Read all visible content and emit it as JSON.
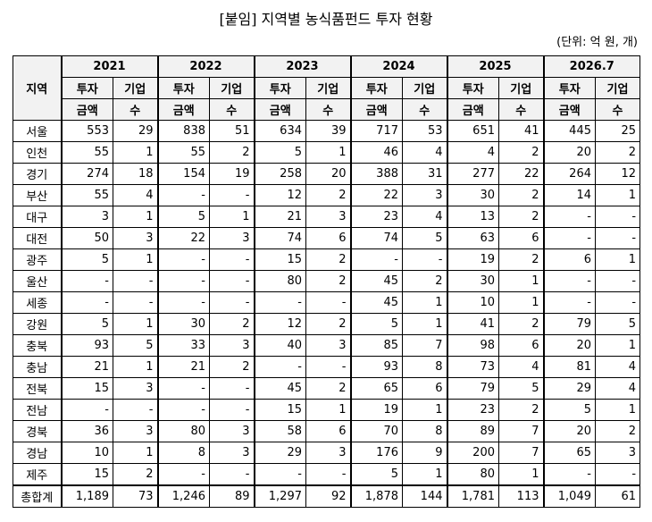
{
  "header": {
    "title": "[붙임] 지역별 농식품펀드 투자 현황",
    "unit": "(단위: 억 원, 개)"
  },
  "table": {
    "region_header": "지역",
    "years": [
      "2021",
      "2022",
      "2023",
      "2024",
      "2025",
      "2026.7"
    ],
    "sub_top": [
      "투자",
      "기업"
    ],
    "sub_bottom": [
      "금액",
      "수"
    ],
    "rows": [
      [
        "서울",
        "553",
        "29",
        "838",
        "51",
        "634",
        "39",
        "717",
        "53",
        "651",
        "41",
        "445",
        "25"
      ],
      [
        "인천",
        "55",
        "1",
        "55",
        "2",
        "5",
        "1",
        "46",
        "4",
        "4",
        "2",
        "20",
        "2"
      ],
      [
        "경기",
        "274",
        "18",
        "154",
        "19",
        "258",
        "20",
        "388",
        "31",
        "277",
        "22",
        "264",
        "12"
      ],
      [
        "부산",
        "55",
        "4",
        "-",
        "-",
        "12",
        "2",
        "22",
        "3",
        "30",
        "2",
        "14",
        "1"
      ],
      [
        "대구",
        "3",
        "1",
        "5",
        "1",
        "21",
        "3",
        "23",
        "4",
        "13",
        "2",
        "-",
        "-"
      ],
      [
        "대전",
        "50",
        "3",
        "22",
        "3",
        "74",
        "6",
        "74",
        "5",
        "63",
        "6",
        "-",
        "-"
      ],
      [
        "광주",
        "5",
        "1",
        "-",
        "-",
        "15",
        "2",
        "-",
        "-",
        "19",
        "2",
        "6",
        "1"
      ],
      [
        "울산",
        "-",
        "-",
        "-",
        "-",
        "80",
        "2",
        "45",
        "2",
        "30",
        "1",
        "-",
        "-"
      ],
      [
        "세종",
        "-",
        "-",
        "-",
        "-",
        "-",
        "-",
        "45",
        "1",
        "10",
        "1",
        "-",
        "-"
      ],
      [
        "강원",
        "5",
        "1",
        "30",
        "2",
        "12",
        "2",
        "5",
        "1",
        "41",
        "2",
        "79",
        "5"
      ],
      [
        "충북",
        "93",
        "5",
        "33",
        "3",
        "40",
        "3",
        "85",
        "7",
        "98",
        "6",
        "20",
        "1"
      ],
      [
        "충남",
        "21",
        "1",
        "21",
        "2",
        "-",
        "-",
        "93",
        "8",
        "73",
        "4",
        "81",
        "4"
      ],
      [
        "전북",
        "15",
        "3",
        "-",
        "-",
        "45",
        "2",
        "65",
        "6",
        "79",
        "5",
        "29",
        "4"
      ],
      [
        "전남",
        "-",
        "-",
        "-",
        "-",
        "15",
        "1",
        "19",
        "1",
        "23",
        "2",
        "5",
        "1"
      ],
      [
        "경북",
        "36",
        "3",
        "80",
        "3",
        "58",
        "6",
        "70",
        "8",
        "89",
        "7",
        "20",
        "2"
      ],
      [
        "경남",
        "10",
        "1",
        "8",
        "3",
        "29",
        "3",
        "176",
        "9",
        "200",
        "7",
        "65",
        "3"
      ],
      [
        "제주",
        "15",
        "2",
        "-",
        "-",
        "-",
        "-",
        "5",
        "1",
        "80",
        "1",
        "-",
        "-"
      ],
      [
        "총합계",
        "1,189",
        "73",
        "1,246",
        "89",
        "1,297",
        "92",
        "1,878",
        "144",
        "1,781",
        "113",
        "1,049",
        "61"
      ]
    ]
  }
}
